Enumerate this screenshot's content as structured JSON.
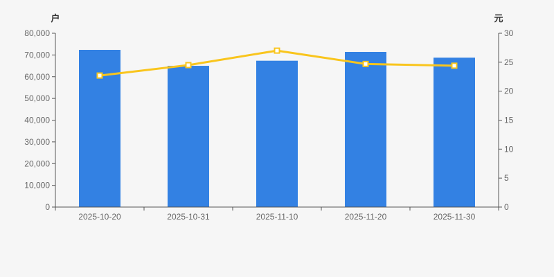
{
  "chart_data": {
    "type": "bar+line dual-axis combo",
    "categories": [
      "2025-10-20",
      "2025-10-31",
      "2025-11-10",
      "2025-11-20",
      "2025-11-30"
    ],
    "bar_series": {
      "axis": "left",
      "values": [
        72350,
        65000,
        67350,
        71400,
        68750
      ]
    },
    "line_series": {
      "axis": "right",
      "values": [
        22.7,
        24.5,
        27.0,
        24.7,
        24.4
      ]
    },
    "left_axis": {
      "unit": "户",
      "min": 0,
      "max": 80000,
      "step": 10000,
      "tick_labels": [
        "0",
        "10,000",
        "20,000",
        "30,000",
        "40,000",
        "50,000",
        "60,000",
        "70,000",
        "80,000"
      ]
    },
    "right_axis": {
      "unit": "元",
      "min": 0,
      "max": 30,
      "step": 5,
      "tick_labels": [
        "0",
        "5",
        "10",
        "15",
        "20",
        "25",
        "30"
      ]
    },
    "title": "",
    "legend": [],
    "grid": "off",
    "colors": {
      "bar": "#3381e3",
      "line": "#f9c51d",
      "marker_fill": "#ffffff",
      "axis_line": "#555555",
      "tick_text": "#666666",
      "unit_text": "#333333",
      "background": "#f6f6f6"
    }
  }
}
